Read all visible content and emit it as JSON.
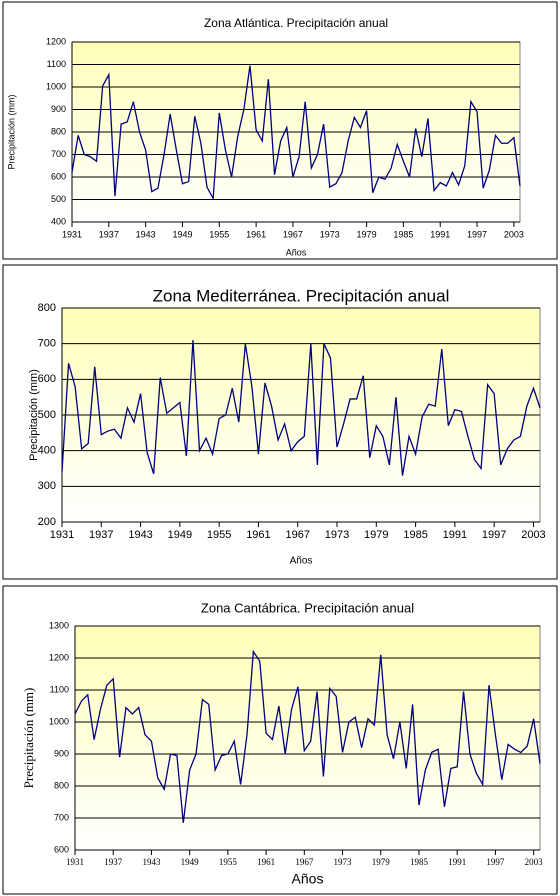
{
  "chart_data": [
    {
      "type": "line",
      "title": "Zona Atlántica. Precipitación anual",
      "x_label": "Años",
      "y_label": "Precipitación (mm)",
      "x": [
        1931,
        1932,
        1933,
        1934,
        1935,
        1936,
        1937,
        1938,
        1939,
        1940,
        1941,
        1942,
        1943,
        1944,
        1945,
        1946,
        1947,
        1948,
        1949,
        1950,
        1951,
        1952,
        1953,
        1954,
        1955,
        1956,
        1957,
        1958,
        1959,
        1960,
        1961,
        1962,
        1963,
        1964,
        1965,
        1966,
        1967,
        1968,
        1969,
        1970,
        1971,
        1972,
        1973,
        1974,
        1975,
        1976,
        1977,
        1978,
        1979,
        1980,
        1981,
        1982,
        1983,
        1984,
        1985,
        1986,
        1987,
        1988,
        1989,
        1990,
        1991,
        1992,
        1993,
        1994,
        1995,
        1996,
        1997,
        1998,
        1999,
        2000,
        2001,
        2002,
        2003,
        2004
      ],
      "values": [
        620,
        785,
        700,
        690,
        670,
        1005,
        1055,
        515,
        835,
        845,
        935,
        800,
        720,
        535,
        550,
        700,
        880,
        720,
        570,
        580,
        870,
        750,
        555,
        505,
        885,
        720,
        600,
        780,
        900,
        1095,
        810,
        760,
        1035,
        610,
        760,
        820,
        600,
        690,
        935,
        640,
        700,
        835,
        555,
        570,
        620,
        760,
        865,
        820,
        895,
        530,
        600,
        590,
        640,
        745,
        670,
        600,
        815,
        690,
        860,
        540,
        575,
        560,
        620,
        565,
        650,
        935,
        890,
        550,
        630,
        785,
        750,
        750,
        775,
        560
      ],
      "color": "#000080",
      "xlim": [
        1931,
        2004
      ],
      "xticks": [
        1931,
        1937,
        1943,
        1949,
        1955,
        1961,
        1967,
        1973,
        1979,
        1985,
        1991,
        1997,
        2003
      ],
      "ylim": [
        400,
        1200
      ],
      "yticks": [
        400,
        500,
        600,
        700,
        800,
        900,
        1000,
        1100,
        1200
      ],
      "grid": true
    },
    {
      "type": "line",
      "title": "Zona Mediterránea. Precipitación anual",
      "x_label": "Años",
      "y_label": "Precipitación (mm)",
      "x": [
        1931,
        1932,
        1933,
        1934,
        1935,
        1936,
        1937,
        1938,
        1939,
        1940,
        1941,
        1942,
        1943,
        1944,
        1945,
        1946,
        1947,
        1948,
        1949,
        1950,
        1951,
        1952,
        1953,
        1954,
        1955,
        1956,
        1957,
        1958,
        1959,
        1960,
        1961,
        1962,
        1963,
        1964,
        1965,
        1966,
        1967,
        1968,
        1969,
        1970,
        1971,
        1972,
        1973,
        1974,
        1975,
        1976,
        1977,
        1978,
        1979,
        1980,
        1981,
        1982,
        1983,
        1984,
        1985,
        1986,
        1987,
        1988,
        1989,
        1990,
        1991,
        1992,
        1993,
        1994,
        1995,
        1996,
        1997,
        1998,
        1999,
        2000,
        2001,
        2002,
        2003,
        2004
      ],
      "values": [
        340,
        645,
        580,
        405,
        420,
        635,
        445,
        455,
        460,
        435,
        520,
        480,
        560,
        395,
        335,
        605,
        505,
        520,
        535,
        385,
        710,
        400,
        435,
        390,
        490,
        500,
        575,
        480,
        700,
        580,
        390,
        590,
        525,
        430,
        475,
        400,
        425,
        440,
        700,
        360,
        700,
        660,
        410,
        475,
        545,
        545,
        610,
        380,
        470,
        440,
        360,
        550,
        330,
        440,
        390,
        495,
        530,
        525,
        685,
        470,
        515,
        510,
        440,
        375,
        350,
        585,
        560,
        360,
        405,
        430,
        440,
        525,
        575,
        520
      ],
      "color": "#000080",
      "xlim": [
        1931,
        2004
      ],
      "xticks": [
        1931,
        1937,
        1943,
        1949,
        1955,
        1961,
        1967,
        1973,
        1979,
        1985,
        1991,
        1997,
        2003
      ],
      "ylim": [
        200,
        800
      ],
      "yticks": [
        200,
        300,
        400,
        500,
        600,
        700,
        800
      ],
      "grid": true
    },
    {
      "type": "line",
      "title": "Zona Cantábrica. Precipitación anual",
      "x_label": "Años",
      "y_label": "Precipitación (mm)",
      "x": [
        1931,
        1932,
        1933,
        1934,
        1935,
        1936,
        1937,
        1938,
        1939,
        1940,
        1941,
        1942,
        1943,
        1944,
        1945,
        1946,
        1947,
        1948,
        1949,
        1950,
        1951,
        1952,
        1953,
        1954,
        1955,
        1956,
        1957,
        1958,
        1959,
        1960,
        1961,
        1962,
        1963,
        1964,
        1965,
        1966,
        1967,
        1968,
        1969,
        1970,
        1971,
        1972,
        1973,
        1974,
        1975,
        1976,
        1977,
        1978,
        1979,
        1980,
        1981,
        1982,
        1983,
        1984,
        1985,
        1986,
        1987,
        1988,
        1989,
        1990,
        1991,
        1992,
        1993,
        1994,
        1995,
        1996,
        1997,
        1998,
        1999,
        2000,
        2001,
        2002,
        2003,
        2004
      ],
      "values": [
        1025,
        1065,
        1085,
        945,
        1040,
        1115,
        1135,
        890,
        1045,
        1025,
        1045,
        960,
        940,
        825,
        790,
        900,
        895,
        685,
        850,
        900,
        1070,
        1055,
        850,
        895,
        900,
        940,
        805,
        960,
        1220,
        1190,
        965,
        945,
        1050,
        900,
        1040,
        1110,
        910,
        940,
        1095,
        830,
        1105,
        1080,
        905,
        1000,
        1015,
        920,
        1010,
        990,
        1210,
        960,
        885,
        1000,
        855,
        1055,
        740,
        850,
        905,
        915,
        735,
        855,
        860,
        1095,
        900,
        840,
        805,
        1115,
        960,
        820,
        930,
        915,
        905,
        925,
        1010,
        870
      ],
      "color": "#000080",
      "xlim": [
        1931,
        2004
      ],
      "xticks": [
        1931,
        1937,
        1943,
        1949,
        1955,
        1961,
        1967,
        1973,
        1979,
        1985,
        1991,
        1997,
        2003
      ],
      "ylim": [
        600,
        1300
      ],
      "yticks": [
        600,
        700,
        800,
        900,
        1000,
        1100,
        1200,
        1300
      ],
      "grid": true
    }
  ]
}
